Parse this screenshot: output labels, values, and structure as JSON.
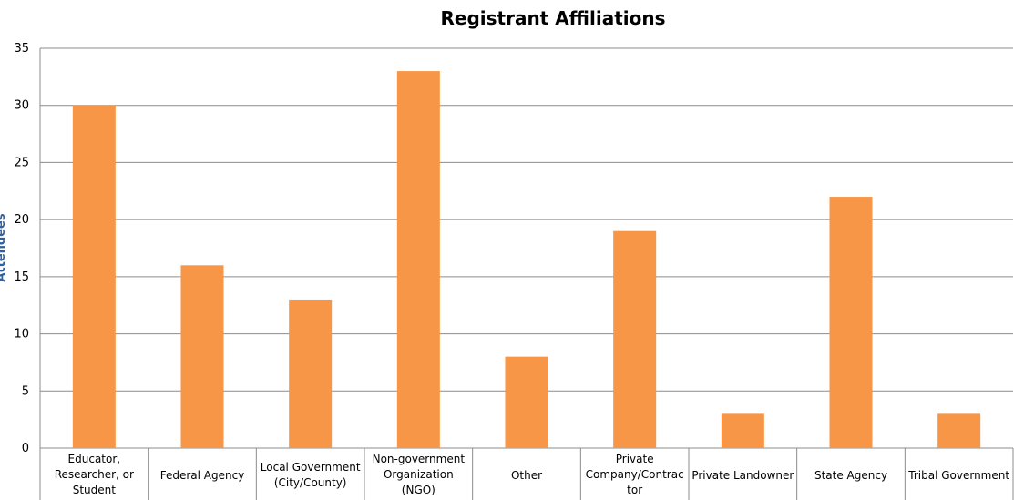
{
  "chart_data": {
    "type": "bar",
    "title": "Registrant Affiliations",
    "ylabel": "Attendees",
    "xlabel": "",
    "ylim": [
      0,
      35
    ],
    "yticks": [
      0,
      5,
      10,
      15,
      20,
      25,
      30,
      35
    ],
    "grid": true,
    "legend": "none",
    "bar_color": "#f79646",
    "categories": [
      [
        "Educator,",
        "Researcher, or",
        "Student"
      ],
      [
        "Federal Agency"
      ],
      [
        "Local Government",
        "(City/County)"
      ],
      [
        "Non-government",
        "Organization",
        "(NGO)"
      ],
      [
        "Other"
      ],
      [
        "Private",
        "Company/Contrac",
        "tor"
      ],
      [
        "Private Landowner"
      ],
      [
        "State Agency"
      ],
      [
        "Tribal Government"
      ]
    ],
    "values": [
      30,
      16,
      13,
      33,
      8,
      19,
      3,
      22,
      3
    ]
  }
}
